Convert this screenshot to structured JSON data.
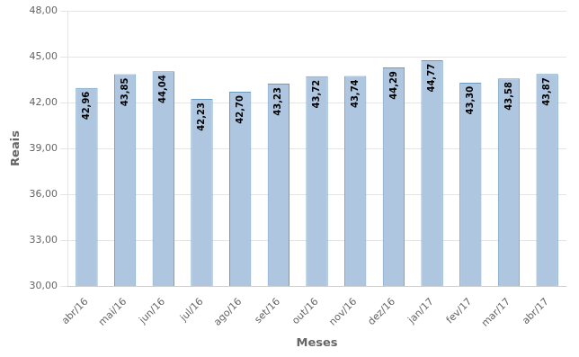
{
  "chart_data": {
    "type": "bar",
    "categories": [
      "abr/16",
      "mai/16",
      "jun/16",
      "jul/16",
      "ago/16",
      "set/16",
      "out/16",
      "nov/16",
      "dez/16",
      "jan/17",
      "fev/17",
      "mar/17",
      "abr/17"
    ],
    "values": [
      42.96,
      43.85,
      44.04,
      42.23,
      42.7,
      43.23,
      43.72,
      43.74,
      44.29,
      44.77,
      43.3,
      43.58,
      43.87
    ],
    "value_labels": [
      "42,96",
      "43,85",
      "44,04",
      "42,23",
      "42,70",
      "43,23",
      "43,72",
      "43,74",
      "44,29",
      "44,77",
      "43,30",
      "43,58",
      "43,87"
    ],
    "data_labels": true,
    "color": "#aec6e0",
    "xlabel": "Meses",
    "ylabel": "Reais",
    "ylim": [
      30.0,
      48.0
    ],
    "yticks": [
      {
        "value": 30.0,
        "label": "30,00"
      },
      {
        "value": 33.0,
        "label": "33,00"
      },
      {
        "value": 36.0,
        "label": "36,00"
      },
      {
        "value": 39.0,
        "label": "39,00"
      },
      {
        "value": 42.0,
        "label": "42,00"
      },
      {
        "value": 45.0,
        "label": "45,00"
      },
      {
        "value": 48.0,
        "label": "48,00"
      }
    ],
    "grid": true
  }
}
